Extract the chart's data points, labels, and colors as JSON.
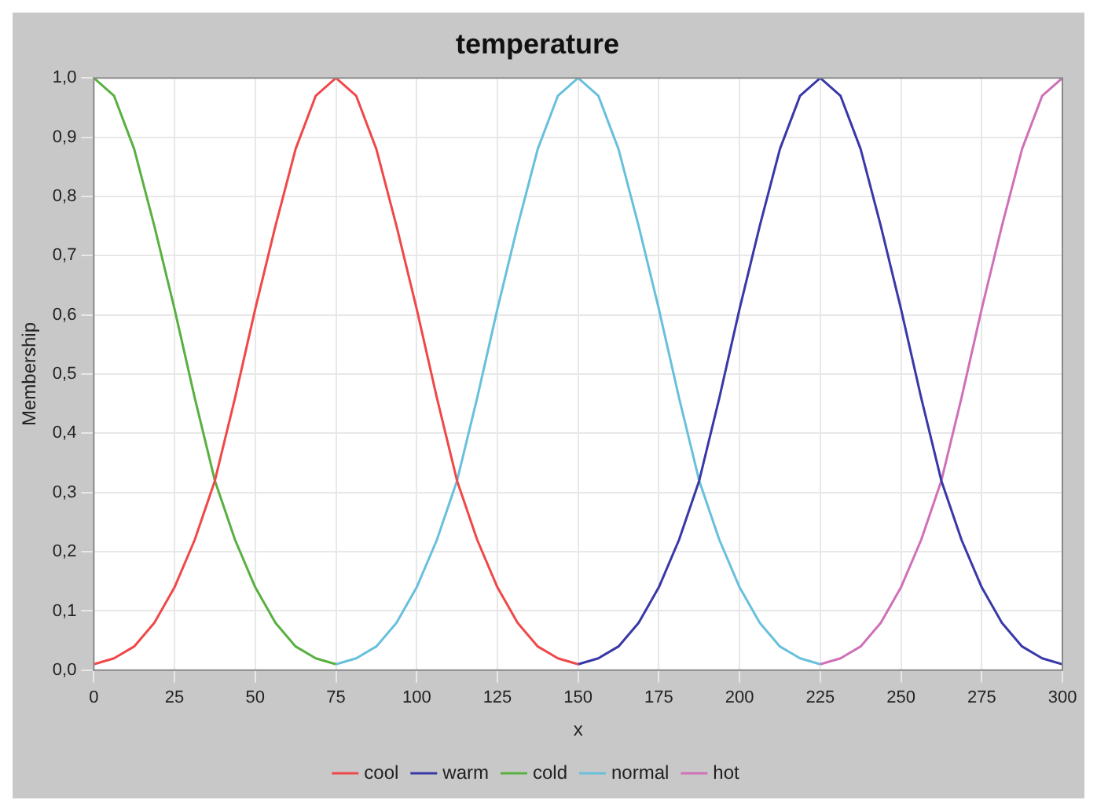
{
  "chart_data": {
    "type": "line",
    "title": "temperature",
    "xlabel": "x",
    "ylabel": "Membership",
    "x": [
      0,
      6.25,
      12.5,
      18.75,
      25,
      31.25,
      37.5,
      43.75,
      50,
      56.25,
      62.5,
      68.75,
      75,
      81.25,
      87.5,
      93.75,
      100,
      106.25,
      112.5,
      118.75,
      125,
      131.25,
      137.5,
      143.75,
      150,
      156.25,
      162.5,
      168.75,
      175,
      181.25,
      187.5,
      193.75,
      200,
      206.25,
      212.5,
      218.75,
      225,
      231.25,
      237.5,
      243.75,
      250,
      256.25,
      262.5,
      268.75,
      275,
      281.25,
      287.5,
      293.75,
      300
    ],
    "series": [
      {
        "name": "cool",
        "color": "#f04848",
        "values": [
          0.01,
          0.02,
          0.04,
          0.08,
          0.14,
          0.22,
          0.32,
          0.46,
          0.61,
          0.75,
          0.88,
          0.97,
          1,
          0.97,
          0.88,
          0.75,
          0.61,
          0.46,
          0.32,
          0.22,
          0.14,
          0.08,
          0.04,
          0.02,
          0.01,
          null,
          null,
          null,
          null,
          null,
          null,
          null,
          null,
          null,
          null,
          null,
          null,
          null,
          null,
          null,
          null,
          null,
          null,
          null,
          null,
          null,
          null,
          null,
          null
        ]
      },
      {
        "name": "warm",
        "color": "#3838a8",
        "values": [
          null,
          null,
          null,
          null,
          null,
          null,
          null,
          null,
          null,
          null,
          null,
          null,
          null,
          null,
          null,
          null,
          null,
          null,
          null,
          null,
          null,
          null,
          null,
          null,
          0.01,
          0.02,
          0.04,
          0.08,
          0.14,
          0.22,
          0.32,
          0.46,
          0.61,
          0.75,
          0.88,
          0.97,
          1,
          0.97,
          0.88,
          0.75,
          0.61,
          0.46,
          0.32,
          0.22,
          0.14,
          0.08,
          0.04,
          0.02,
          0.01
        ]
      },
      {
        "name": "cold",
        "color": "#58b040",
        "values": [
          1,
          0.97,
          0.88,
          0.75,
          0.61,
          0.46,
          0.32,
          0.22,
          0.14,
          0.08,
          0.04,
          0.02,
          0.01,
          null,
          null,
          null,
          null,
          null,
          null,
          null,
          null,
          null,
          null,
          null,
          null,
          null,
          null,
          null,
          null,
          null,
          null,
          null,
          null,
          null,
          null,
          null,
          null,
          null,
          null,
          null,
          null,
          null,
          null,
          null,
          null,
          null,
          null,
          null,
          null
        ]
      },
      {
        "name": "normal",
        "color": "#68c0dc",
        "values": [
          null,
          null,
          null,
          null,
          null,
          null,
          null,
          null,
          null,
          null,
          null,
          null,
          0.01,
          0.02,
          0.04,
          0.08,
          0.14,
          0.22,
          0.32,
          0.46,
          0.61,
          0.75,
          0.88,
          0.97,
          1,
          0.97,
          0.88,
          0.75,
          0.61,
          0.46,
          0.32,
          0.22,
          0.14,
          0.08,
          0.04,
          0.02,
          0.01,
          null,
          null,
          null,
          null,
          null,
          null,
          null,
          null,
          null,
          null,
          null,
          null
        ]
      },
      {
        "name": "hot",
        "color": "#d070b8",
        "values": [
          null,
          null,
          null,
          null,
          null,
          null,
          null,
          null,
          null,
          null,
          null,
          null,
          null,
          null,
          null,
          null,
          null,
          null,
          null,
          null,
          null,
          null,
          null,
          null,
          null,
          null,
          null,
          null,
          null,
          null,
          null,
          null,
          null,
          null,
          null,
          null,
          0.01,
          0.02,
          0.04,
          0.08,
          0.14,
          0.22,
          0.32,
          0.46,
          0.61,
          0.75,
          0.88,
          0.97,
          1
        ]
      }
    ],
    "xlim": [
      0,
      300
    ],
    "xticks": [
      0,
      25,
      50,
      75,
      100,
      125,
      150,
      175,
      200,
      225,
      250,
      275,
      300
    ],
    "ylim": [
      0,
      1
    ],
    "yticks": [
      {
        "value": 0,
        "label": "0,0"
      },
      {
        "value": 0.1,
        "label": "0,1"
      },
      {
        "value": 0.2,
        "label": "0,2"
      },
      {
        "value": 0.3,
        "label": "0,3"
      },
      {
        "value": 0.4,
        "label": "0,4"
      },
      {
        "value": 0.5,
        "label": "0,5"
      },
      {
        "value": 0.6,
        "label": "0,6"
      },
      {
        "value": 0.7,
        "label": "0,7"
      },
      {
        "value": 0.8,
        "label": "0,8"
      },
      {
        "value": 0.9,
        "label": "0,9"
      },
      {
        "value": 1,
        "label": "1,0"
      }
    ],
    "grid": true,
    "legend": "bottom",
    "marker": "none",
    "line_style": "solid"
  }
}
